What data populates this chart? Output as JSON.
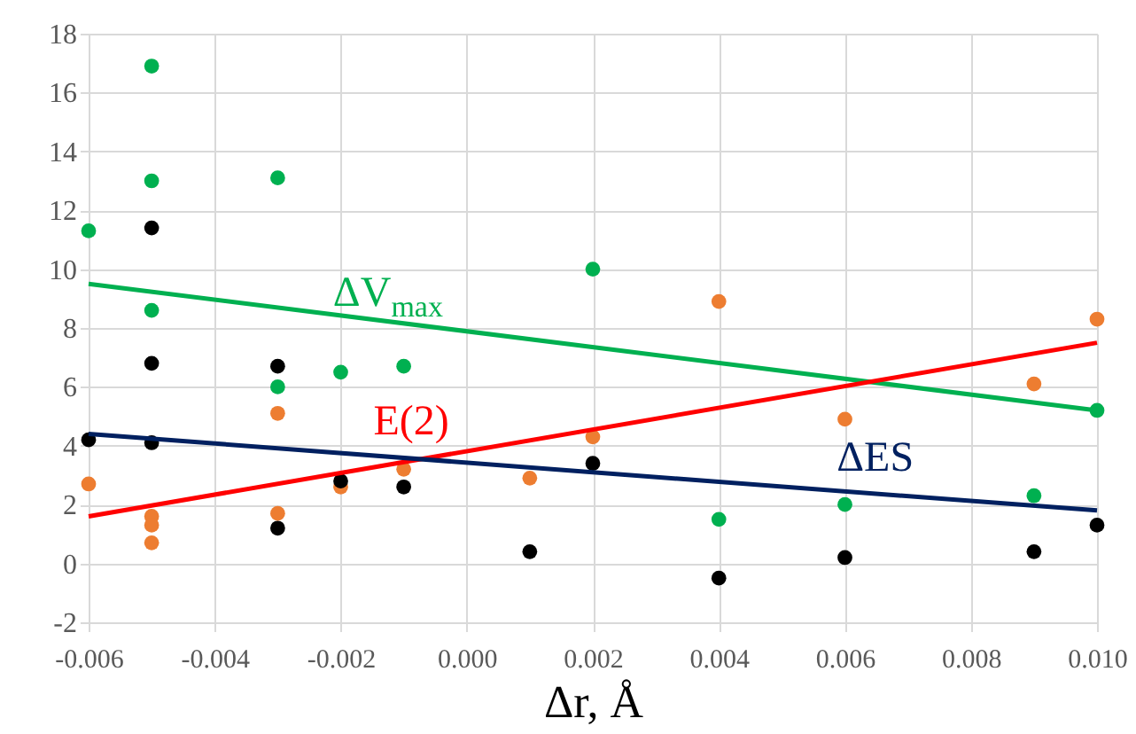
{
  "chart_data": {
    "type": "scatter",
    "xlabel": "Δr, Å",
    "xlim": [
      -0.006,
      0.01
    ],
    "ylim": [
      -2,
      18
    ],
    "xticks": [
      -0.006,
      -0.004,
      -0.002,
      {
        "value": 0,
        "label": "0.000"
      },
      0.002,
      0.004,
      0.006,
      0.008,
      {
        "value": 0.01,
        "label": "0.010"
      }
    ],
    "yticks": [
      -2,
      0,
      2,
      4,
      6,
      8,
      10,
      12,
      14,
      16,
      18
    ],
    "grid": true,
    "series": [
      {
        "type": "scatter",
        "marker": "circle",
        "color": "#00b050",
        "x": [
          -0.006,
          -0.005,
          -0.005,
          -0.005,
          -0.003,
          -0.003,
          -0.002,
          -0.001,
          0.002,
          0.004,
          0.006,
          0.009,
          0.01
        ],
        "values": [
          11.3,
          16.9,
          13.0,
          8.6,
          13.1,
          6.0,
          6.5,
          6.7,
          10.0,
          1.5,
          2.0,
          2.3,
          5.2
        ]
      },
      {
        "type": "scatter",
        "marker": "circle",
        "color": "#000000",
        "x": [
          -0.006,
          -0.005,
          -0.005,
          -0.005,
          -0.003,
          -0.003,
          -0.002,
          -0.001,
          0.001,
          0.002,
          0.004,
          0.006,
          0.009,
          0.01
        ],
        "values": [
          4.2,
          11.4,
          6.8,
          4.1,
          6.7,
          1.2,
          2.8,
          2.6,
          0.4,
          3.4,
          -0.5,
          0.2,
          0.4,
          1.3
        ]
      },
      {
        "type": "scatter",
        "marker": "circle",
        "color": "#ed7d31",
        "x": [
          -0.006,
          -0.005,
          -0.005,
          -0.005,
          -0.003,
          -0.003,
          -0.002,
          -0.001,
          0.001,
          0.002,
          0.004,
          0.006,
          0.009,
          0.01
        ],
        "values": [
          2.7,
          1.6,
          1.3,
          0.7,
          5.1,
          1.7,
          2.6,
          3.2,
          2.9,
          4.3,
          8.9,
          4.9,
          6.1,
          8.3
        ]
      },
      {
        "type": "line",
        "name": "ΔV$_{max}$",
        "color": "#00b050",
        "x": [
          -0.006,
          0.01
        ],
        "values": [
          9.5,
          5.2
        ]
      },
      {
        "type": "line",
        "name": "E(2)",
        "color": "#ff0000",
        "x": [
          -0.006,
          0.01
        ],
        "values": [
          1.6,
          7.5
        ]
      },
      {
        "type": "line",
        "name": "ΔES",
        "color": "#002060",
        "x": [
          -0.006,
          0.01
        ],
        "values": [
          4.4,
          1.8
        ]
      }
    ]
  }
}
